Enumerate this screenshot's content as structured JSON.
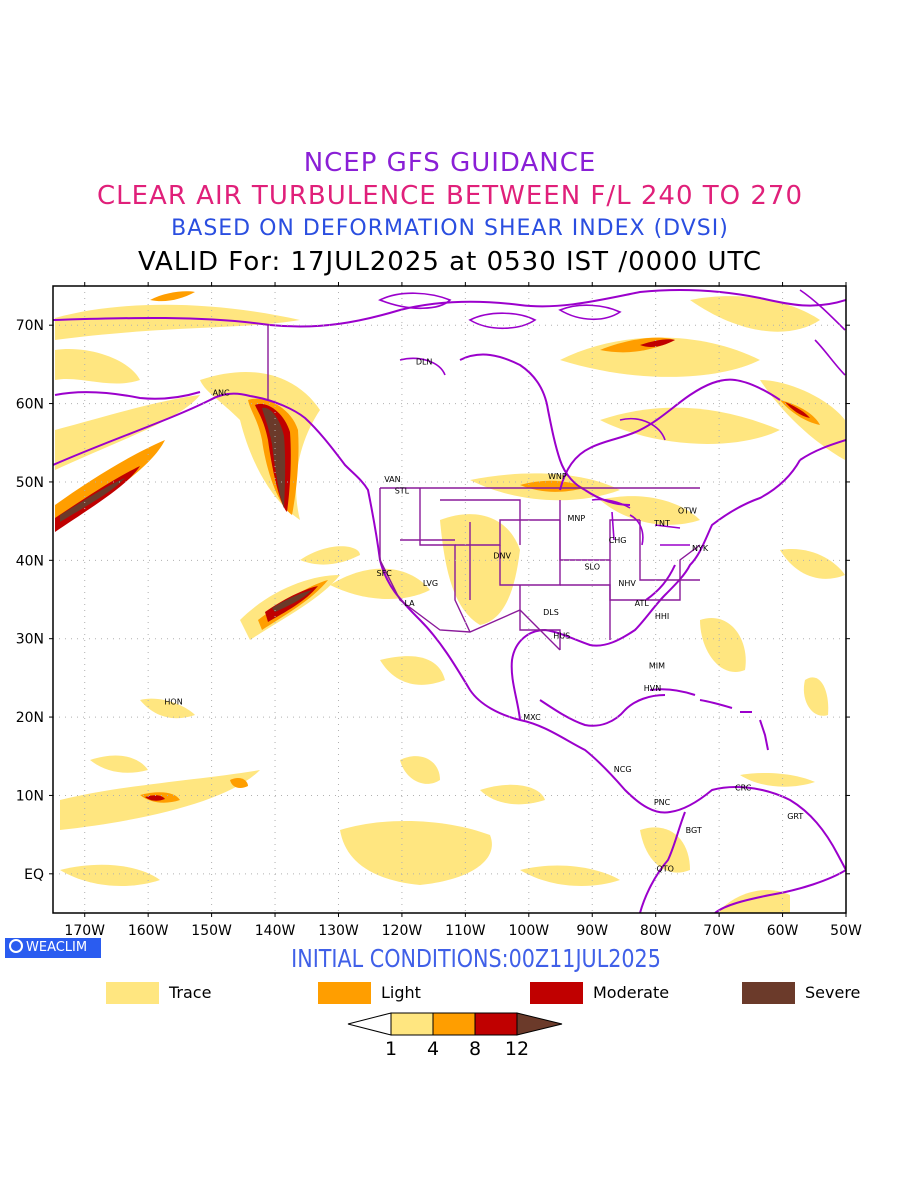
{
  "header": {
    "line1": "NCEP GFS GUIDANCE",
    "line2": "CLEAR AIR TURBULENCE BETWEEN F/L 240 TO 270",
    "line3": "BASED ON DEFORMATION SHEAR INDEX (DVSI)",
    "line4": "VALID For: 17JUL2025 at 0530 IST /0000 UTC"
  },
  "map": {
    "lat_labels": [
      "70N",
      "60N",
      "50N",
      "40N",
      "30N",
      "20N",
      "10N",
      "EQ"
    ],
    "lon_labels": [
      "170W",
      "160W",
      "150W",
      "140W",
      "130W",
      "120W",
      "110W",
      "100W",
      "90W",
      "80W",
      "70W",
      "60W",
      "50W"
    ],
    "stations": [
      {
        "code": "ANC",
        "lon": -148.5,
        "lat": 61.0
      },
      {
        "code": "DLN",
        "lon": -116.5,
        "lat": 65.0
      },
      {
        "code": "VAN",
        "lon": -121.5,
        "lat": 50.0
      },
      {
        "code": "STL",
        "lon": -120.0,
        "lat": 48.5
      },
      {
        "code": "WNP",
        "lon": -95.5,
        "lat": 50.4
      },
      {
        "code": "MNP",
        "lon": -92.5,
        "lat": 45.0
      },
      {
        "code": "OTW",
        "lon": -75.0,
        "lat": 46.0
      },
      {
        "code": "TNT",
        "lon": -79.0,
        "lat": 44.4
      },
      {
        "code": "CHG",
        "lon": -86.0,
        "lat": 42.2
      },
      {
        "code": "NYK",
        "lon": -73.0,
        "lat": 41.2
      },
      {
        "code": "DNV",
        "lon": -104.2,
        "lat": 40.2
      },
      {
        "code": "SFC",
        "lon": -122.8,
        "lat": 38.0
      },
      {
        "code": "LVG",
        "lon": -115.5,
        "lat": 36.7
      },
      {
        "code": "SLO",
        "lon": -90.0,
        "lat": 38.8
      },
      {
        "code": "NHV",
        "lon": -84.5,
        "lat": 36.7
      },
      {
        "code": "LA",
        "lon": -118.8,
        "lat": 34.2
      },
      {
        "code": "ATL",
        "lon": -82.2,
        "lat": 34.2
      },
      {
        "code": "DLS",
        "lon": -96.5,
        "lat": 33.0
      },
      {
        "code": "HHI",
        "lon": -79.0,
        "lat": 32.5
      },
      {
        "code": "HUS",
        "lon": -94.8,
        "lat": 30.0
      },
      {
        "code": "MIM",
        "lon": -79.8,
        "lat": 26.2
      },
      {
        "code": "HVN",
        "lon": -80.5,
        "lat": 23.3
      },
      {
        "code": "HON",
        "lon": -156.0,
        "lat": 21.6
      },
      {
        "code": "MXC",
        "lon": -99.5,
        "lat": 19.6
      },
      {
        "code": "NCG",
        "lon": -85.2,
        "lat": 13.0
      },
      {
        "code": "CRC",
        "lon": -66.2,
        "lat": 10.6
      },
      {
        "code": "PNC",
        "lon": -79.0,
        "lat": 8.8
      },
      {
        "code": "GRT",
        "lon": -58.0,
        "lat": 7.0
      },
      {
        "code": "BGT",
        "lon": -74.0,
        "lat": 5.2
      },
      {
        "code": "QTO",
        "lon": -78.5,
        "lat": 0.3
      }
    ]
  },
  "footer": {
    "brand": "WEACLIM",
    "initial": "INITIAL CONDITIONS:00Z11JUL2025"
  },
  "legend": [
    {
      "label": "Trace",
      "color": "#ffe680"
    },
    {
      "label": "Light",
      "color": "#ff9e00"
    },
    {
      "label": "Moderate",
      "color": "#c00000"
    },
    {
      "label": "Severe",
      "color": "#6b3a2a"
    }
  ],
  "colorbar": {
    "ticks": [
      "1",
      "4",
      "8",
      "12"
    ],
    "colors": [
      "#ffffff",
      "#ffe680",
      "#ff9e00",
      "#c00000",
      "#6b3a2a"
    ]
  },
  "colors": {
    "coast": "#9b00cc",
    "state_border": "#8a1a9a",
    "trace": "#ffe680",
    "light": "#ff9e00",
    "moderate": "#c00000",
    "severe": "#6b3a2a"
  }
}
